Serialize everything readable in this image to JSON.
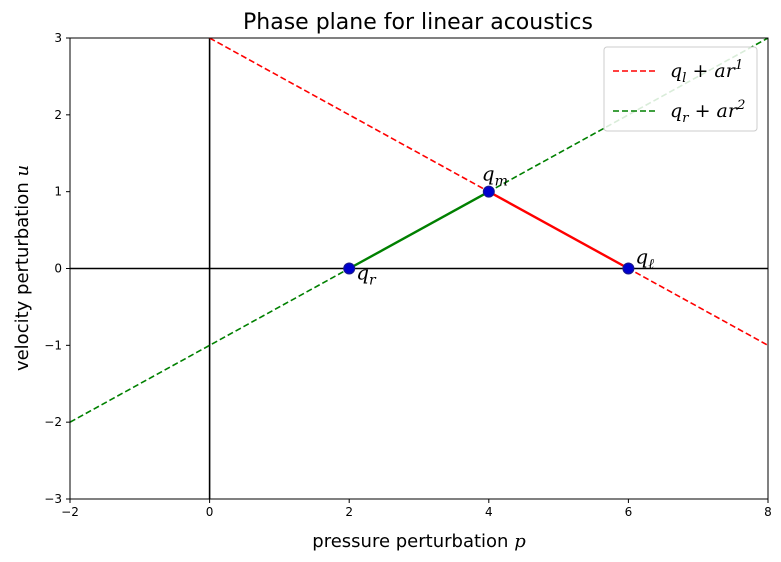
{
  "chart_data": {
    "type": "line",
    "title": "Phase plane for linear acoustics",
    "xlabel": "pressure perturbation p",
    "ylabel": "velocity perturbation u",
    "xlim": [
      -2,
      8
    ],
    "ylim": [
      -3,
      3
    ],
    "xticks": [
      -2,
      0,
      2,
      4,
      6,
      8
    ],
    "yticks": [
      -3,
      -2,
      -1,
      0,
      1,
      2,
      3
    ],
    "xtick_labels": [
      "−2",
      "0",
      "2",
      "4",
      "6",
      "8"
    ],
    "ytick_labels": [
      "−3",
      "−2",
      "−1",
      "0",
      "1",
      "2",
      "3"
    ],
    "grid": false,
    "legend_position": "top-right",
    "series": [
      {
        "name": "q_l + a r^1",
        "label_text": "qₗ + ar¹",
        "color": "#ff0000",
        "style": "dashed",
        "x": [
          0,
          8
        ],
        "y": [
          3,
          -1
        ]
      },
      {
        "name": "q_r + a r^2",
        "label_text": "qᵣ + ar²",
        "color": "#008000",
        "style": "dashed",
        "x": [
          -2,
          8
        ],
        "y": [
          -2,
          3
        ]
      },
      {
        "name": "right segment",
        "color": "#ff0000",
        "style": "solid",
        "x": [
          4,
          6
        ],
        "y": [
          1,
          0
        ]
      },
      {
        "name": "left segment",
        "color": "#008000",
        "style": "solid",
        "x": [
          2,
          4
        ],
        "y": [
          0,
          1
        ]
      }
    ],
    "points": [
      {
        "name": "q_r",
        "label_text": "qᵣ",
        "x": 2,
        "y": 0,
        "color": "#0000cc"
      },
      {
        "name": "q_m",
        "label_text": "qₘ",
        "x": 4,
        "y": 1,
        "color": "#0000cc"
      },
      {
        "name": "q_ell",
        "label_text": "qℓ",
        "x": 6,
        "y": 0,
        "color": "#0000cc"
      }
    ],
    "reference_lines": [
      {
        "orientation": "horizontal",
        "value": 0,
        "color": "#000000"
      },
      {
        "orientation": "vertical",
        "value": 0,
        "color": "#000000"
      }
    ],
    "legend": [
      {
        "label_text": "qₗ + ar¹",
        "color": "#ff0000",
        "style": "dashed"
      },
      {
        "label_text": "qᵣ + ar²",
        "color": "#008000",
        "style": "dashed"
      }
    ]
  }
}
